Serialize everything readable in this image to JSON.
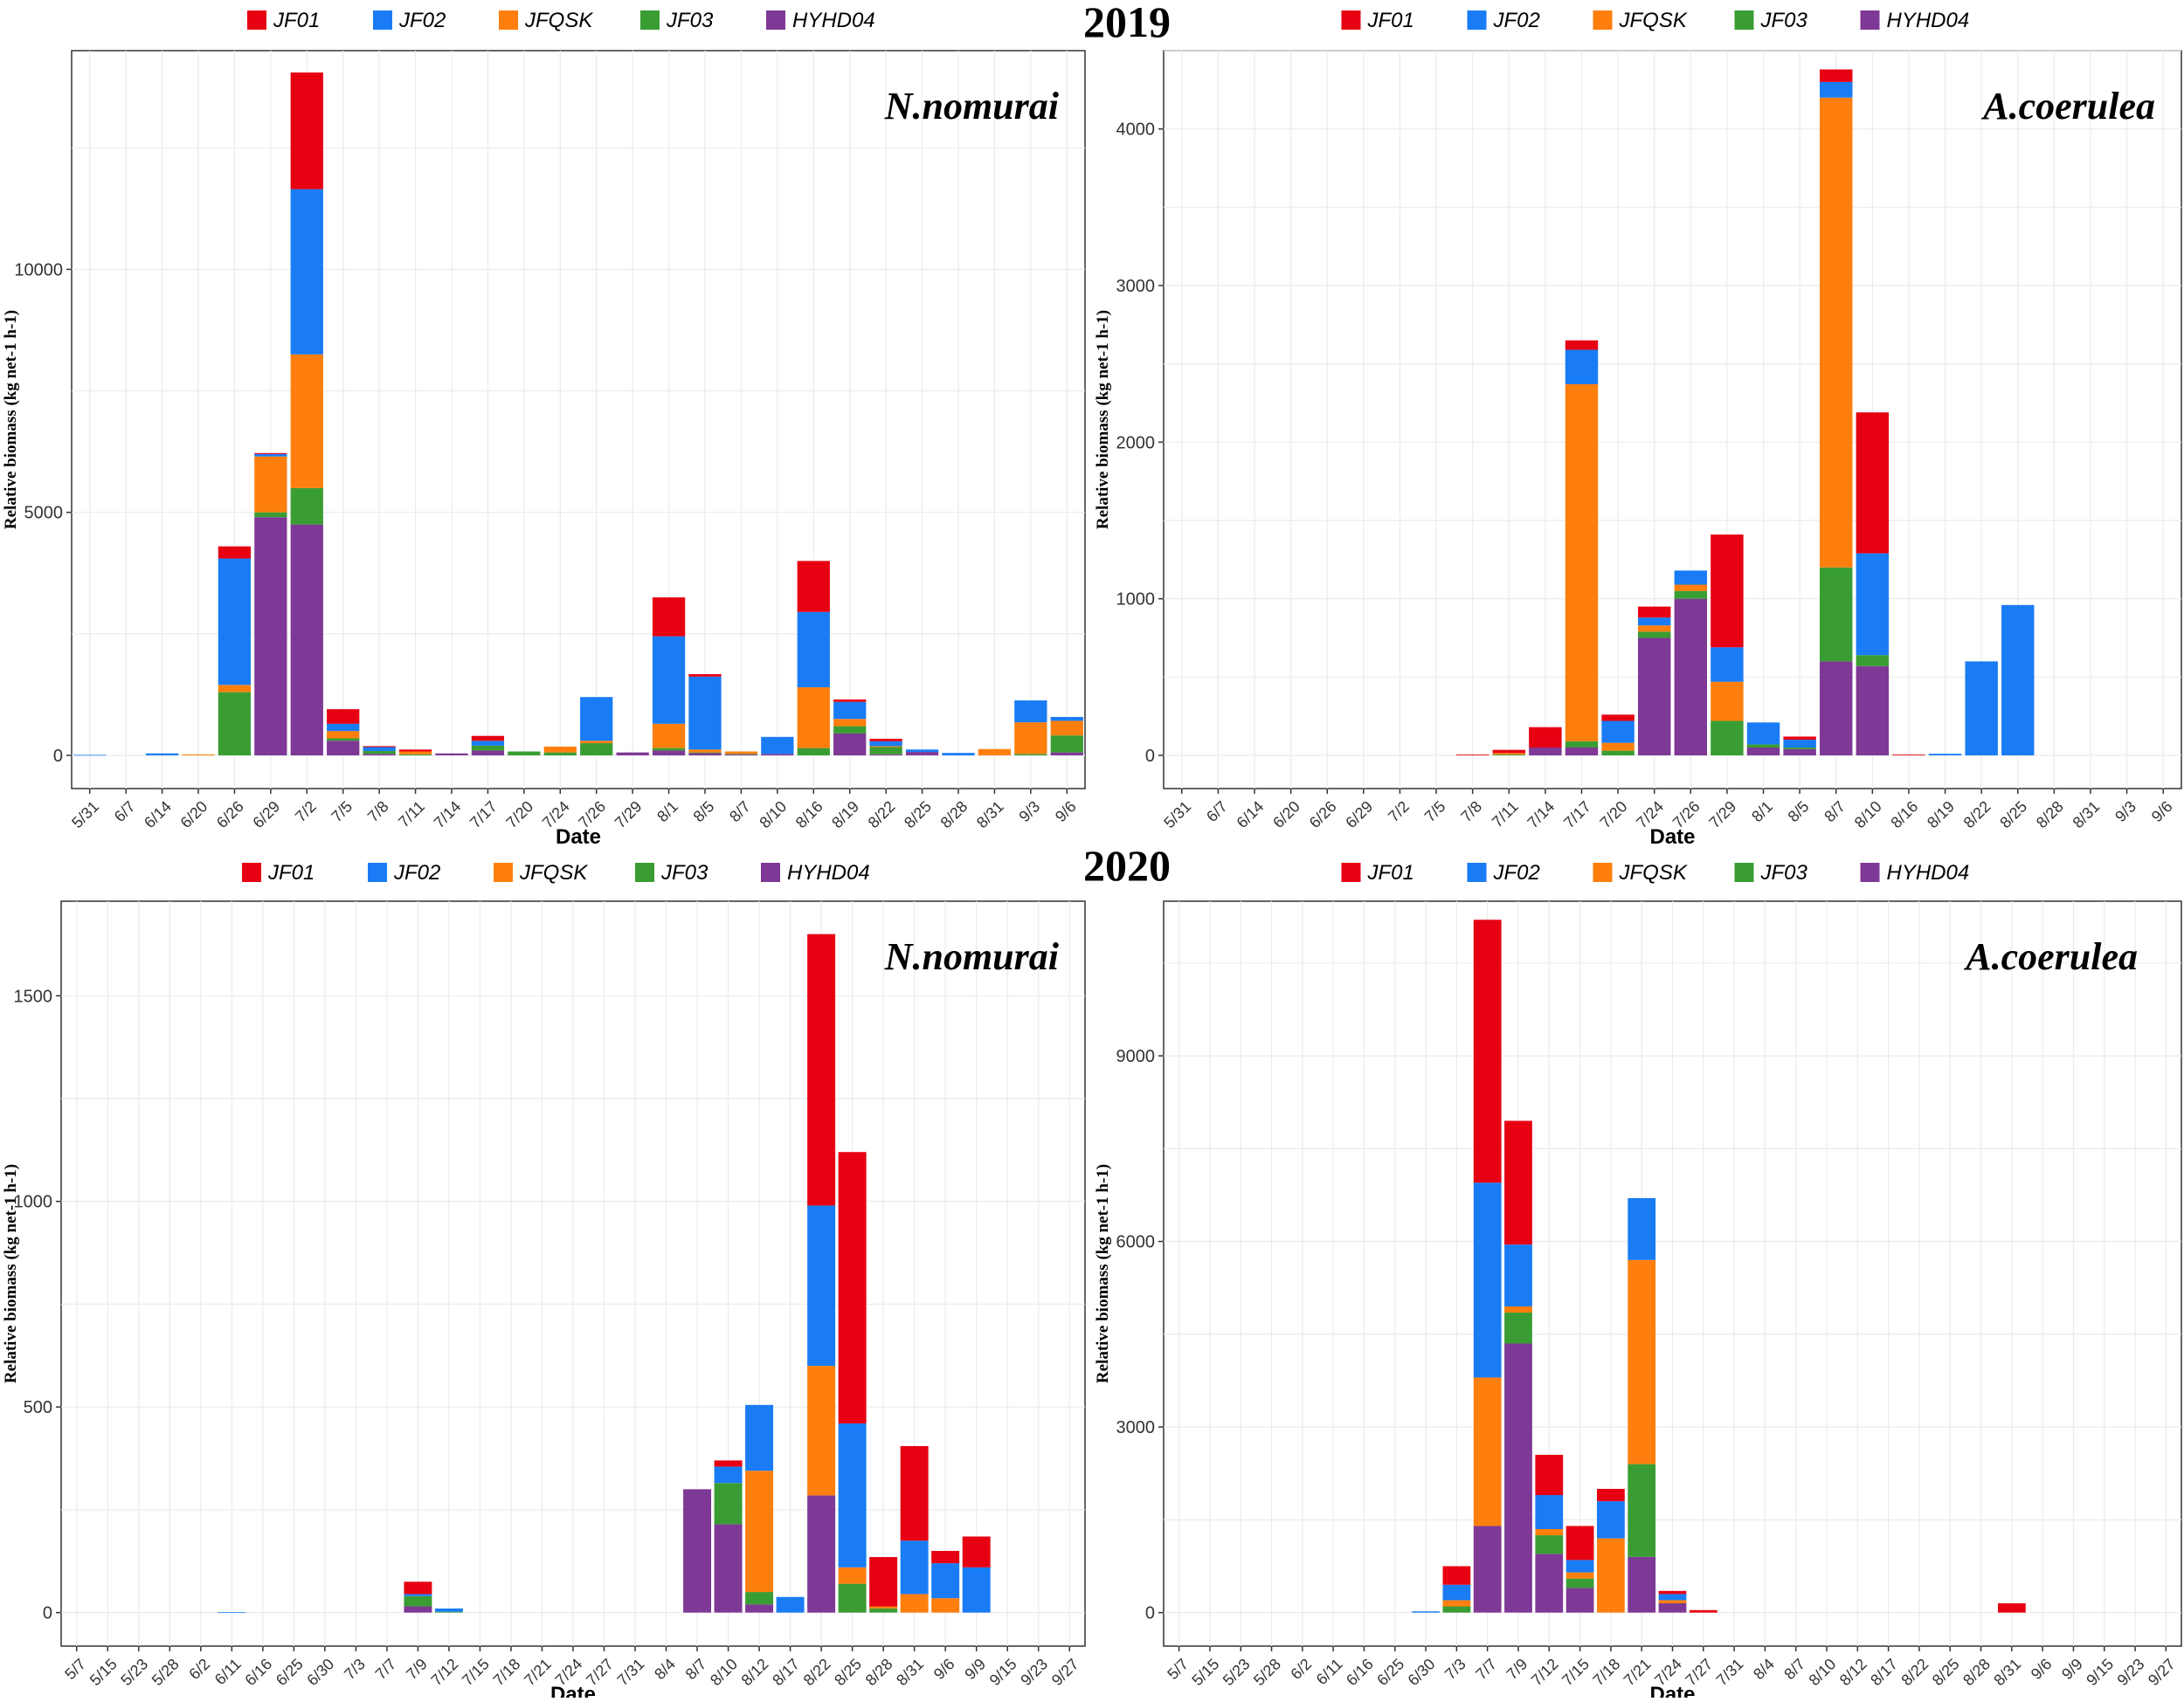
{
  "series_colors": {
    "JF01": "#e60012",
    "JF02": "#1a7cf5",
    "JFQSK": "#ff7f0e",
    "JF03": "#3a9d33",
    "HYHD04": "#7e3895"
  },
  "chart_data": [
    {
      "type": "bar",
      "stacked": true,
      "year_title": "2019",
      "species": "N.nomurai",
      "xlabel": "Date",
      "ylabel": "Relative biomass (kg net-1 h-1)",
      "ylim": [
        0,
        14500
      ],
      "yticks": [
        0,
        5000,
        10000
      ],
      "grid": true,
      "legend_position": "top",
      "stack_order": [
        "HYHD04",
        "JF03",
        "JFQSK",
        "JF02",
        "JF01"
      ],
      "categories": [
        "5/31",
        "6/7",
        "6/14",
        "6/20",
        "6/26",
        "6/29",
        "7/2",
        "7/5",
        "7/8",
        "7/11",
        "7/14",
        "7/17",
        "7/20",
        "7/24",
        "7/26",
        "7/29",
        "8/1",
        "8/5",
        "8/7",
        "8/10",
        "8/16",
        "8/19",
        "8/22",
        "8/25",
        "8/28",
        "8/31",
        "9/3",
        "9/6"
      ],
      "series": [
        {
          "name": "JF01",
          "values": [
            0,
            0,
            0,
            0,
            250,
            20,
            2400,
            300,
            20,
            40,
            0,
            100,
            0,
            0,
            0,
            0,
            800,
            50,
            0,
            0,
            1050,
            50,
            50,
            0,
            0,
            0,
            0,
            0
          ]
        },
        {
          "name": "JF02",
          "values": [
            10,
            0,
            40,
            0,
            2600,
            50,
            3400,
            150,
            80,
            0,
            0,
            100,
            0,
            0,
            900,
            0,
            1800,
            1500,
            0,
            350,
            1550,
            350,
            100,
            50,
            50,
            0,
            450,
            80
          ]
        },
        {
          "name": "JFQSK",
          "values": [
            0,
            0,
            0,
            20,
            150,
            1150,
            2750,
            150,
            0,
            60,
            0,
            0,
            0,
            120,
            50,
            0,
            500,
            60,
            50,
            0,
            1250,
            150,
            20,
            0,
            0,
            130,
            650,
            300
          ]
        },
        {
          "name": "JF03",
          "values": [
            0,
            0,
            0,
            0,
            1300,
            100,
            750,
            50,
            60,
            20,
            0,
            100,
            80,
            60,
            250,
            0,
            50,
            10,
            10,
            0,
            150,
            150,
            150,
            0,
            0,
            0,
            30,
            350
          ]
        },
        {
          "name": "HYHD04",
          "values": [
            0,
            0,
            0,
            0,
            0,
            4900,
            4750,
            300,
            30,
            0,
            40,
            100,
            0,
            0,
            0,
            60,
            100,
            50,
            20,
            30,
            0,
            450,
            20,
            70,
            0,
            0,
            0,
            60
          ]
        }
      ]
    },
    {
      "type": "bar",
      "stacked": true,
      "year_title": "2019",
      "species": "A.coerulea",
      "xlabel": "Date",
      "ylabel": "Relative biomass (kg net-1 h-1)",
      "ylim": [
        0,
        4500
      ],
      "yticks": [
        0,
        1000,
        2000,
        3000,
        4000
      ],
      "grid": true,
      "legend_position": "top",
      "stack_order": [
        "HYHD04",
        "JF03",
        "JFQSK",
        "JF02",
        "JF01"
      ],
      "categories": [
        "5/31",
        "6/7",
        "6/14",
        "6/20",
        "6/26",
        "6/29",
        "7/2",
        "7/5",
        "7/8",
        "7/11",
        "7/14",
        "7/17",
        "7/20",
        "7/24",
        "7/26",
        "7/29",
        "8/1",
        "8/5",
        "8/7",
        "8/10",
        "8/16",
        "8/19",
        "8/22",
        "8/25",
        "8/28",
        "8/31",
        "9/3",
        "9/6"
      ],
      "series": [
        {
          "name": "JF01",
          "values": [
            0,
            0,
            0,
            0,
            0,
            0,
            0,
            0,
            5,
            20,
            130,
            60,
            40,
            70,
            0,
            720,
            0,
            20,
            80,
            900,
            5,
            0,
            0,
            0,
            0,
            0,
            0,
            0
          ]
        },
        {
          "name": "JF02",
          "values": [
            0,
            0,
            0,
            0,
            0,
            0,
            0,
            0,
            0,
            0,
            0,
            220,
            140,
            50,
            90,
            220,
            140,
            50,
            100,
            650,
            0,
            10,
            600,
            960,
            0,
            0,
            0,
            0
          ]
        },
        {
          "name": "JFQSK",
          "values": [
            0,
            0,
            0,
            0,
            0,
            0,
            0,
            0,
            0,
            10,
            0,
            2280,
            50,
            40,
            40,
            250,
            0,
            0,
            3000,
            0,
            0,
            0,
            0,
            0,
            0,
            0,
            0,
            0
          ]
        },
        {
          "name": "JF03",
          "values": [
            0,
            0,
            0,
            0,
            0,
            0,
            0,
            0,
            0,
            5,
            0,
            40,
            30,
            40,
            50,
            220,
            20,
            10,
            600,
            70,
            0,
            0,
            0,
            0,
            0,
            0,
            0,
            0
          ]
        },
        {
          "name": "HYHD04",
          "values": [
            0,
            0,
            0,
            0,
            0,
            0,
            0,
            0,
            0,
            0,
            50,
            50,
            0,
            750,
            1000,
            0,
            50,
            40,
            600,
            570,
            0,
            0,
            0,
            0,
            0,
            0,
            0,
            0
          ]
        }
      ]
    },
    {
      "type": "bar",
      "stacked": true,
      "year_title": "2020",
      "species": "N.nomurai",
      "xlabel": "Date",
      "ylabel": "Relative biomass (kg net-1 h-1)",
      "ylim": [
        0,
        1730
      ],
      "yticks": [
        0,
        500,
        1000,
        1500
      ],
      "grid": true,
      "legend_position": "top",
      "stack_order": [
        "HYHD04",
        "JF03",
        "JFQSK",
        "JF02",
        "JF01"
      ],
      "categories": [
        "5/7",
        "5/15",
        "5/23",
        "5/28",
        "6/2",
        "6/11",
        "6/16",
        "6/25",
        "6/30",
        "7/3",
        "7/7",
        "7/9",
        "7/12",
        "7/15",
        "7/18",
        "7/21",
        "7/24",
        "7/27",
        "7/31",
        "8/4",
        "8/7",
        "8/10",
        "8/12",
        "8/17",
        "8/22",
        "8/25",
        "8/28",
        "8/31",
        "9/6",
        "9/9",
        "9/15",
        "9/23",
        "9/27"
      ],
      "series": [
        {
          "name": "JF01",
          "values": [
            0,
            0,
            0,
            0,
            0,
            0,
            0,
            0,
            0,
            0,
            0,
            30,
            0,
            0,
            0,
            0,
            0,
            0,
            0,
            0,
            0,
            15,
            0,
            0,
            660,
            660,
            120,
            230,
            30,
            75,
            0,
            0,
            0
          ]
        },
        {
          "name": "JF02",
          "values": [
            0,
            0,
            0,
            0,
            0,
            1,
            0,
            0,
            0,
            0,
            0,
            5,
            8,
            0,
            0,
            0,
            0,
            0,
            0,
            0,
            0,
            40,
            160,
            38,
            390,
            350,
            0,
            130,
            85,
            110,
            0,
            0,
            0
          ]
        },
        {
          "name": "JFQSK",
          "values": [
            0,
            0,
            0,
            0,
            0,
            0,
            0,
            0,
            0,
            0,
            0,
            0,
            0,
            0,
            0,
            0,
            0,
            0,
            0,
            0,
            0,
            0,
            295,
            0,
            315,
            40,
            5,
            45,
            35,
            0,
            0,
            0,
            0
          ]
        },
        {
          "name": "JF03",
          "values": [
            0,
            0,
            0,
            0,
            0,
            0,
            0,
            0,
            0,
            0,
            0,
            25,
            2,
            0,
            0,
            0,
            0,
            0,
            0,
            0,
            0,
            100,
            30,
            0,
            0,
            70,
            10,
            0,
            0,
            0,
            0,
            0,
            0
          ]
        },
        {
          "name": "HYHD04",
          "values": [
            0,
            0,
            0,
            0,
            0,
            0,
            0,
            0,
            0,
            0,
            0,
            15,
            0,
            0,
            0,
            0,
            0,
            0,
            0,
            0,
            300,
            215,
            20,
            0,
            285,
            0,
            0,
            0,
            0,
            0,
            0,
            0,
            0
          ]
        }
      ]
    },
    {
      "type": "bar",
      "stacked": true,
      "year_title": "2020",
      "species": "A.coerulea",
      "xlabel": "Date",
      "ylabel": "Relative biomass (kg net-1 h-1)",
      "ylim": [
        0,
        11500
      ],
      "yticks": [
        0,
        3000,
        6000,
        9000
      ],
      "grid": true,
      "legend_position": "top",
      "stack_order": [
        "HYHD04",
        "JF03",
        "JFQSK",
        "JF02",
        "JF01"
      ],
      "categories": [
        "5/7",
        "5/15",
        "5/23",
        "5/28",
        "6/2",
        "6/11",
        "6/16",
        "6/25",
        "6/30",
        "7/3",
        "7/7",
        "7/9",
        "7/12",
        "7/15",
        "7/18",
        "7/21",
        "7/24",
        "7/27",
        "7/31",
        "8/4",
        "8/7",
        "8/10",
        "8/12",
        "8/17",
        "8/22",
        "8/25",
        "8/28",
        "8/31",
        "9/6",
        "9/9",
        "9/15",
        "9/23",
        "9/27"
      ],
      "series": [
        {
          "name": "JF01",
          "values": [
            0,
            0,
            0,
            0,
            0,
            0,
            0,
            0,
            0,
            300,
            4250,
            2000,
            650,
            550,
            200,
            0,
            50,
            40,
            0,
            0,
            0,
            0,
            0,
            0,
            0,
            0,
            0,
            150,
            0,
            0,
            0,
            0,
            0
          ]
        },
        {
          "name": "JF02",
          "values": [
            0,
            0,
            0,
            0,
            0,
            0,
            0,
            0,
            20,
            250,
            3150,
            1000,
            550,
            200,
            600,
            1000,
            100,
            0,
            0,
            0,
            0,
            0,
            0,
            0,
            0,
            0,
            0,
            0,
            0,
            0,
            0,
            0,
            0
          ]
        },
        {
          "name": "JFQSK",
          "values": [
            0,
            0,
            0,
            0,
            0,
            0,
            0,
            0,
            0,
            100,
            2400,
            100,
            100,
            100,
            1200,
            3300,
            50,
            0,
            0,
            0,
            0,
            0,
            0,
            0,
            0,
            0,
            0,
            0,
            0,
            0,
            0,
            0,
            0
          ]
        },
        {
          "name": "JF03",
          "values": [
            0,
            0,
            0,
            0,
            0,
            0,
            0,
            0,
            0,
            100,
            0,
            500,
            300,
            150,
            0,
            1500,
            0,
            0,
            0,
            0,
            0,
            0,
            0,
            0,
            0,
            0,
            0,
            0,
            0,
            0,
            0,
            0,
            0
          ]
        },
        {
          "name": "HYHD04",
          "values": [
            0,
            0,
            0,
            0,
            0,
            0,
            0,
            0,
            0,
            0,
            1400,
            4350,
            950,
            400,
            0,
            900,
            150,
            0,
            0,
            0,
            0,
            0,
            0,
            0,
            0,
            0,
            0,
            0,
            0,
            0,
            0,
            0,
            0
          ]
        }
      ]
    }
  ]
}
